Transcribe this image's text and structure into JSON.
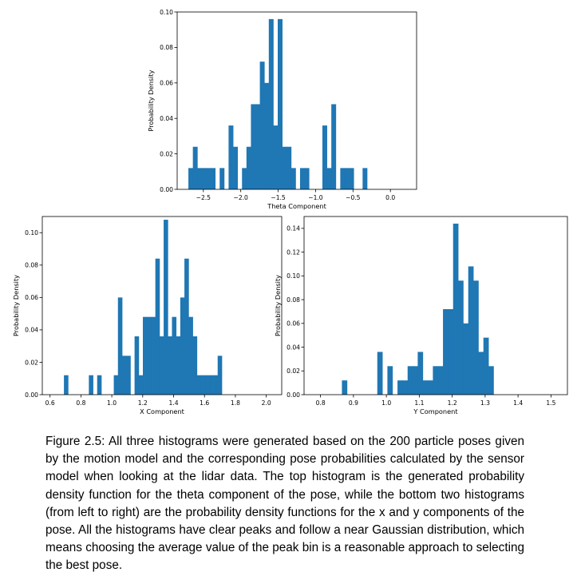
{
  "chart_data": [
    {
      "id": "theta",
      "type": "bar",
      "xlabel": "Theta Component",
      "ylabel": "Probability Density",
      "xlim": [
        -2.85,
        0.35
      ],
      "ylim": [
        0,
        0.1
      ],
      "xticks": [
        -2.5,
        -2.0,
        -1.5,
        -1.0,
        -0.5,
        0.0
      ],
      "xtick_labels": [
        "−2.5",
        "−2.0",
        "−1.5",
        "−1.0",
        "−0.5",
        "0.0"
      ],
      "yticks": [
        0,
        0.02,
        0.04,
        0.06,
        0.08,
        0.1
      ],
      "ytick_labels": [
        "0.00",
        "0.02",
        "0.04",
        "0.06",
        "0.08",
        "0.10"
      ],
      "bin_start": -2.7,
      "bin_width": 0.0597,
      "values": [
        0.012,
        0.024,
        0.012,
        0.012,
        0.012,
        0.012,
        0,
        0.012,
        0,
        0.036,
        0.024,
        0,
        0.012,
        0.024,
        0.048,
        0.048,
        0.072,
        0.06,
        0.096,
        0.036,
        0.096,
        0.024,
        0.024,
        0.012,
        0,
        0.012,
        0.012,
        0,
        0,
        0,
        0.036,
        0.012,
        0.048,
        0,
        0.012,
        0.012,
        0.012,
        0,
        0,
        0.012
      ]
    },
    {
      "id": "x",
      "type": "bar",
      "xlabel": "X Component",
      "ylabel": "Probability Density",
      "xlim": [
        0.55,
        2.1
      ],
      "ylim": [
        0,
        0.11
      ],
      "xticks": [
        0.6,
        0.8,
        1.0,
        1.2,
        1.4,
        1.6,
        1.8,
        2.0
      ],
      "xtick_labels": [
        "0.6",
        "0.8",
        "1.0",
        "1.2",
        "1.4",
        "1.6",
        "1.8",
        "2.0"
      ],
      "yticks": [
        0,
        0.02,
        0.04,
        0.06,
        0.08,
        0.1
      ],
      "ytick_labels": [
        "0.00",
        "0.02",
        "0.04",
        "0.06",
        "0.08",
        "0.10"
      ],
      "bin_start": 0.69,
      "bin_width": 0.0269,
      "values": [
        0.012,
        0,
        0,
        0,
        0,
        0,
        0.012,
        0,
        0.012,
        0,
        0,
        0,
        0.012,
        0.06,
        0.024,
        0.024,
        0,
        0.036,
        0.012,
        0.048,
        0.048,
        0.048,
        0.084,
        0.036,
        0.108,
        0.036,
        0.048,
        0.036,
        0.06,
        0.084,
        0.048,
        0.036,
        0.012,
        0.012,
        0.012,
        0.012,
        0.012,
        0.024
      ]
    },
    {
      "id": "y",
      "type": "bar",
      "xlabel": "Y Component",
      "ylabel": "Probability Density",
      "xlim": [
        0.75,
        1.55
      ],
      "ylim": [
        0,
        0.15
      ],
      "xticks": [
        0.8,
        0.9,
        1.0,
        1.1,
        1.2,
        1.3,
        1.4,
        1.5
      ],
      "xtick_labels": [
        "0.8",
        "0.9",
        "1.0",
        "1.1",
        "1.2",
        "1.3",
        "1.4",
        "1.5"
      ],
      "yticks": [
        0,
        0.02,
        0.04,
        0.06,
        0.08,
        0.1,
        0.12,
        0.14
      ],
      "ytick_labels": [
        "0.00",
        "0.02",
        "0.04",
        "0.06",
        "0.08",
        "0.10",
        "0.12",
        "0.14"
      ],
      "bin_start": 0.865,
      "bin_width": 0.01535,
      "values": [
        0.012,
        0,
        0,
        0,
        0,
        0,
        0,
        0.036,
        0,
        0.024,
        0,
        0.012,
        0.012,
        0.024,
        0.024,
        0.036,
        0.012,
        0.012,
        0.024,
        0.024,
        0.072,
        0.072,
        0.144,
        0.096,
        0.06,
        0.108,
        0.096,
        0.036,
        0.048,
        0.024
      ]
    }
  ],
  "caption": "Figure 2.5: All three histograms were generated based on the 200 particle poses given by the motion model and the corresponding pose probabilities calculated by the sensor model when looking at the lidar data. The top histogram is the generated probability density function for the theta component of the pose, while the bottom two histograms (from left to right) are the probability density functions for the x and y components of the pose. All the histograms have clear peaks and follow a near Gaussian distribution, which means choosing the average value of the peak bin is a reasonable approach to selecting the best pose.",
  "colors": {
    "bar": "#1f77b4",
    "axis": "#000000",
    "background": "#ffffff"
  }
}
